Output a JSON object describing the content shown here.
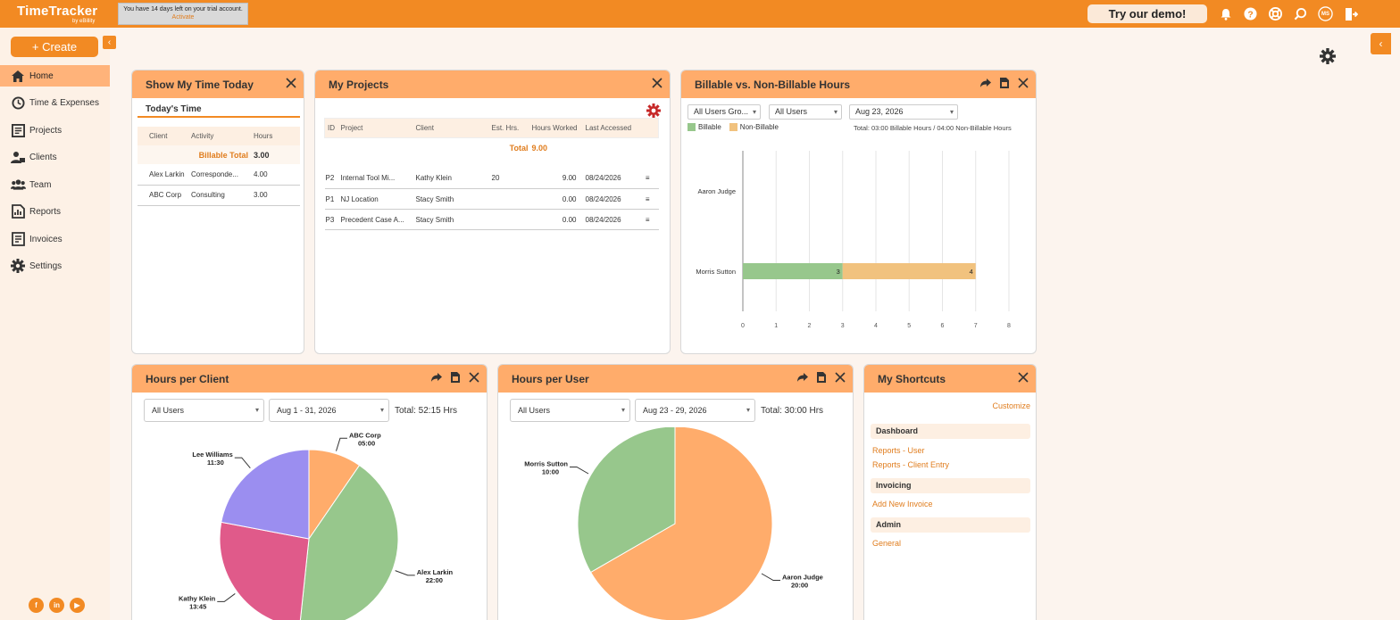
{
  "topbar": {
    "logo_name": "TimeTracker",
    "logo_by": "by eBillity",
    "trial_text": "You have 14 days left on your trial account.",
    "trial_link": "Activate",
    "demo_button": "Try our demo!",
    "avatar_initials": "MS"
  },
  "sidebar": {
    "create_label": "+ Create",
    "items": [
      {
        "label": "Home",
        "icon": "home-icon"
      },
      {
        "label": "Time & Expenses",
        "icon": "clock-icon"
      },
      {
        "label": "Projects",
        "icon": "projects-icon"
      },
      {
        "label": "Clients",
        "icon": "clients-icon"
      },
      {
        "label": "Team",
        "icon": "team-icon"
      },
      {
        "label": "Reports",
        "icon": "reports-icon"
      },
      {
        "label": "Invoices",
        "icon": "invoices-icon"
      },
      {
        "label": "Settings",
        "icon": "gear-icon"
      }
    ]
  },
  "show_my_time": {
    "title": "Show My Time Today",
    "tab": "Today's Time",
    "columns": [
      "Client",
      "Activity",
      "Hours"
    ],
    "billable_total_label": "Billable Total",
    "billable_total_value": "3.00",
    "rows": [
      {
        "client": "Alex Larkin",
        "activity": "Corresponde...",
        "hours": "4.00"
      },
      {
        "client": "ABC Corp",
        "activity": "Consulting",
        "hours": "3.00"
      }
    ]
  },
  "my_projects": {
    "title": "My Projects",
    "columns": [
      "ID",
      "Project",
      "Client",
      "Est. Hrs.",
      "Hours Worked",
      "Last Accessed"
    ],
    "total_label": "Total",
    "total_value": "9.00",
    "rows": [
      {
        "id": "P2",
        "project": "Internal Tool Mi...",
        "client": "Kathy Klein",
        "est": "20",
        "worked": "9.00",
        "accessed": "08/24/2026"
      },
      {
        "id": "P1",
        "project": "NJ Location",
        "client": "Stacy Smith",
        "est": "",
        "worked": "0.00",
        "accessed": "08/24/2026"
      },
      {
        "id": "P3",
        "project": "Precedent Case A...",
        "client": "Stacy Smith",
        "est": "",
        "worked": "0.00",
        "accessed": "08/24/2026"
      }
    ]
  },
  "billable_widget": {
    "title": "Billable vs. Non-Billable Hours",
    "filter_group": "All Users Gro...",
    "filter_users": "All Users",
    "filter_date": "Aug 23, 2026",
    "legend_billable": "Billable",
    "legend_nonbillable": "Non-Billable",
    "total_text": "Total: 03:00 Billable Hours / 04:00 Non-Billable Hours"
  },
  "hours_per_client": {
    "title": "Hours per Client",
    "filter_users": "All Users",
    "filter_date": "Aug 1 - 31, 2026",
    "total_text": "Total: 52:15 Hrs"
  },
  "hours_per_user": {
    "title": "Hours per User",
    "filter_users": "All Users",
    "filter_date": "Aug 23 - 29, 2026",
    "total_text": "Total: 30:00 Hrs"
  },
  "shortcuts": {
    "title": "My Shortcuts",
    "customize": "Customize",
    "sections": [
      {
        "heading": "Dashboard",
        "links": [
          "Reports - User",
          "Reports - Client Entry"
        ]
      },
      {
        "heading": "Invoicing",
        "links": [
          "Add New Invoice"
        ]
      },
      {
        "heading": "Admin",
        "links": [
          "General"
        ]
      }
    ]
  },
  "colors": {
    "brand_orange": "#f28a23",
    "header_orange": "#ffac6b",
    "billable_green": "#97c78c",
    "nonbillable_tan": "#f1c27e"
  },
  "chart_data": [
    {
      "type": "bar",
      "orientation": "horizontal",
      "stacked": true,
      "categories": [
        "Aaron Judge",
        "Morris Sutton"
      ],
      "series": [
        {
          "name": "Billable",
          "values": [
            0,
            3
          ],
          "color": "#97c78c"
        },
        {
          "name": "Non-Billable",
          "values": [
            0,
            4
          ],
          "color": "#f1c27e"
        }
      ],
      "xticks": [
        "0",
        "1",
        "2",
        "3",
        "4",
        "5",
        "6",
        "7",
        "8"
      ],
      "xlim": [
        0,
        8
      ],
      "grid": true
    },
    {
      "type": "pie",
      "labels": [
        "ABC Corp",
        "Alex Larkin",
        "Kathy Klein",
        "Lee Williams"
      ],
      "value_labels": [
        "05:00",
        "22:00",
        "13:45",
        "11:30"
      ],
      "values": [
        5.0,
        22.0,
        13.75,
        11.5
      ],
      "colors": [
        "#ffac6b",
        "#97c78c",
        "#e05a8a",
        "#9b8ef0"
      ]
    },
    {
      "type": "pie",
      "labels": [
        "Aaron Judge",
        "Morris Sutton"
      ],
      "value_labels": [
        "20:00",
        "10:00"
      ],
      "values": [
        20,
        10
      ],
      "colors": [
        "#ffac6b",
        "#97c78c"
      ]
    }
  ]
}
